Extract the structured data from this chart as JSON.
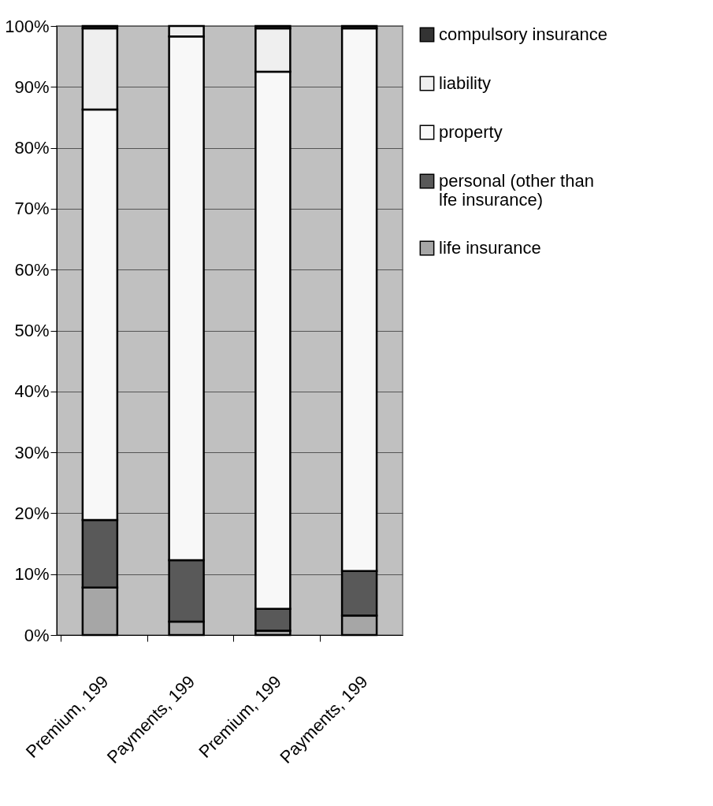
{
  "chart_data": {
    "type": "bar",
    "stacked": true,
    "categories": [
      "Premium, 199",
      "Payments, 199",
      "Premium, 199",
      "Payments, 199"
    ],
    "series": [
      {
        "name": "life insurance",
        "color": "#a6a6a6",
        "values": [
          7.8,
          2.2,
          0.7,
          3.2
        ]
      },
      {
        "name": "personal (other than lfe insurance)",
        "color": "#595959",
        "values": [
          11.1,
          10.1,
          3.6,
          7.3
        ]
      },
      {
        "name": "property",
        "color": "#f8f8f8",
        "values": [
          67.4,
          86.0,
          88.2,
          89.1
        ]
      },
      {
        "name": "liability",
        "color": "#efefef",
        "values": [
          13.3,
          1.7,
          7.1,
          null
        ]
      },
      {
        "name": "compulsory insurance",
        "color": "#333333",
        "values": [
          0.4,
          null,
          0.4,
          0.4
        ]
      }
    ],
    "ylim": [
      0,
      100
    ],
    "yticks": [
      {
        "value": 0,
        "label": "0%"
      },
      {
        "value": 10,
        "label": "10%"
      },
      {
        "value": 20,
        "label": "20%"
      },
      {
        "value": 30,
        "label": "30%"
      },
      {
        "value": 40,
        "label": "40%"
      },
      {
        "value": 50,
        "label": "50%"
      },
      {
        "value": 60,
        "label": "60%"
      },
      {
        "value": 70,
        "label": "70%"
      },
      {
        "value": 80,
        "label": "80%"
      },
      {
        "value": 90,
        "label": "90%"
      },
      {
        "value": 100,
        "label": "100%"
      }
    ],
    "grid": "y",
    "legend": "right"
  }
}
